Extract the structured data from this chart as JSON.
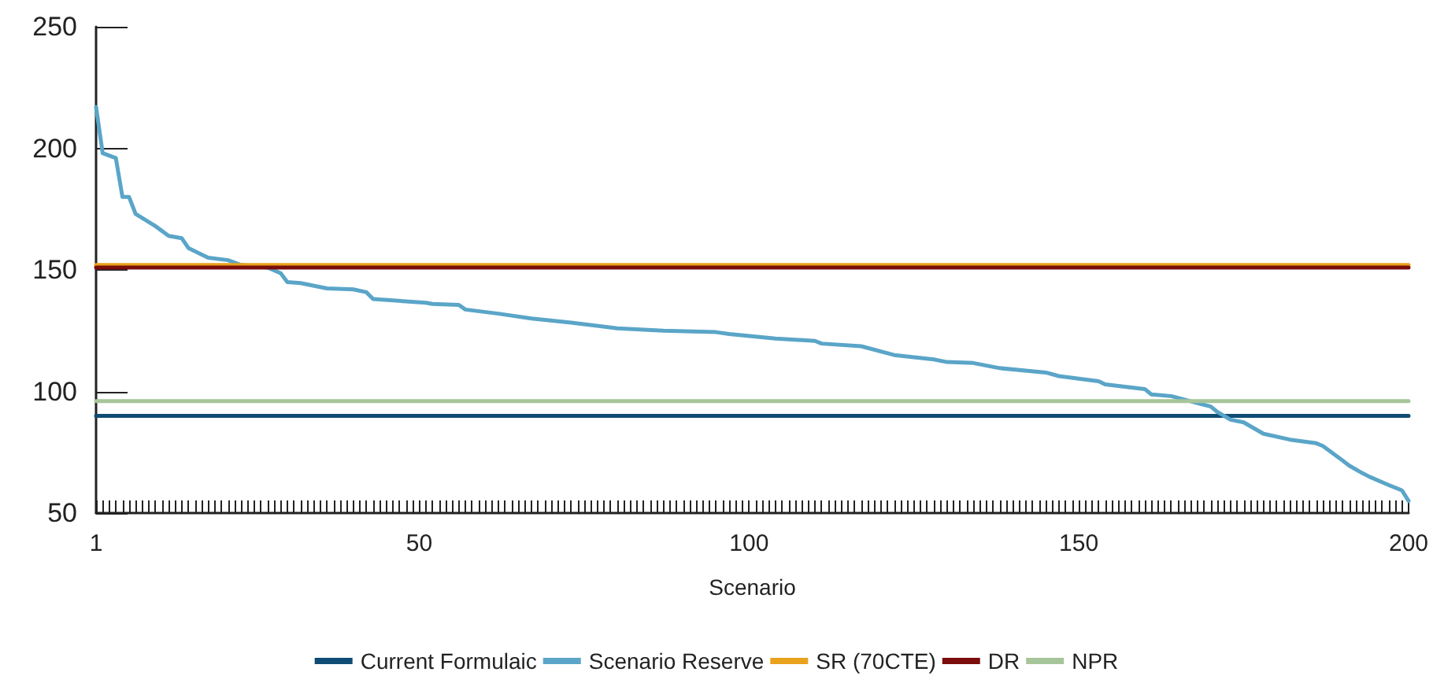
{
  "chart_data": {
    "type": "line",
    "xlabel": "Scenario",
    "xlim": [
      1,
      200
    ],
    "xticks": [
      1,
      50,
      100,
      150,
      200
    ],
    "ylim": [
      50,
      250
    ],
    "yticks": [
      50,
      100,
      150,
      200,
      250
    ],
    "grid": false,
    "legend": "bottom",
    "marker": "none",
    "line_style": "solid",
    "series": [
      {
        "name": "Current Formulaic",
        "color": "#0f4c75",
        "x": [
          1,
          200
        ],
        "values": [
          90,
          90
        ]
      },
      {
        "name": "Scenario Reserve",
        "color": "#5aa5c8",
        "x": [
          1,
          2,
          4,
          5,
          6,
          7,
          10,
          12,
          14,
          15,
          18,
          21,
          23,
          27,
          29,
          30,
          32,
          36,
          40,
          42,
          43,
          51,
          52,
          56,
          57,
          62,
          67,
          73,
          80,
          87,
          95,
          97,
          104,
          110,
          111,
          117,
          122,
          128,
          130,
          134,
          138,
          145,
          147,
          153,
          154,
          160,
          161,
          164,
          170,
          171,
          173,
          175,
          178,
          182,
          186,
          187,
          190,
          191,
          193,
          194,
          197,
          199,
          200
        ],
        "values": [
          217,
          198,
          196,
          180,
          180,
          173,
          168,
          164,
          163,
          159,
          155,
          154,
          152,
          151,
          148.6,
          145,
          144.6,
          142.4,
          142,
          140.8,
          138,
          136.5,
          136,
          135.6,
          133.7,
          132,
          130,
          128.3,
          126,
          125,
          124.4,
          123.6,
          121.8,
          120.8,
          119.7,
          118.6,
          115,
          113.2,
          112.1,
          111.7,
          109.6,
          107.8,
          106.3,
          104.2,
          102.9,
          101,
          98.8,
          98.1,
          93.8,
          91.6,
          88.4,
          87.3,
          82.6,
          80.2,
          78.7,
          77.6,
          71.6,
          69.5,
          66.4,
          65,
          61.5,
          59.3,
          55
        ]
      },
      {
        "name": "SR (70CTE)",
        "color": "#e8a21c",
        "x": [
          1,
          200
        ],
        "values": [
          152,
          152
        ]
      },
      {
        "name": "DR",
        "color": "#7a0c0c",
        "x": [
          1,
          200
        ],
        "values": [
          151,
          151
        ]
      },
      {
        "name": "NPR",
        "color": "#a6c59a",
        "x": [
          1,
          200
        ],
        "values": [
          96,
          96
        ]
      }
    ]
  }
}
